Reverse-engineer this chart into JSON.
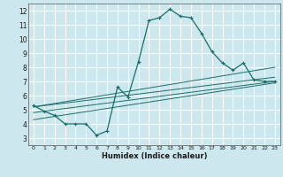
{
  "xlabel": "Humidex (Indice chaleur)",
  "bg_color": "#cce8ee",
  "grid_color": "#ffffff",
  "line_color": "#1a6e6a",
  "xlim": [
    -0.5,
    23.5
  ],
  "ylim": [
    2.5,
    12.5
  ],
  "xticks": [
    0,
    1,
    2,
    3,
    4,
    5,
    6,
    7,
    8,
    9,
    10,
    11,
    12,
    13,
    14,
    15,
    16,
    17,
    18,
    19,
    20,
    21,
    22,
    23
  ],
  "yticks": [
    3,
    4,
    5,
    6,
    7,
    8,
    9,
    10,
    11,
    12
  ],
  "main_curve_x": [
    0,
    1,
    2,
    3,
    4,
    5,
    6,
    7,
    8,
    9,
    10,
    11,
    12,
    13,
    14,
    15,
    16,
    17,
    18,
    19,
    20,
    21,
    22,
    23
  ],
  "main_curve_y": [
    5.3,
    4.9,
    4.6,
    4.0,
    4.0,
    4.0,
    3.2,
    3.5,
    6.6,
    5.9,
    8.4,
    11.3,
    11.5,
    12.1,
    11.6,
    11.5,
    10.4,
    9.1,
    8.3,
    7.8,
    8.3,
    7.1,
    7.0,
    7.0
  ],
  "reg_lines": [
    {
      "x": [
        0,
        23
      ],
      "y": [
        5.2,
        8.0
      ]
    },
    {
      "x": [
        0,
        23
      ],
      "y": [
        5.2,
        7.3
      ]
    },
    {
      "x": [
        0,
        23
      ],
      "y": [
        4.8,
        7.0
      ]
    },
    {
      "x": [
        0,
        23
      ],
      "y": [
        4.3,
        6.9
      ]
    }
  ]
}
